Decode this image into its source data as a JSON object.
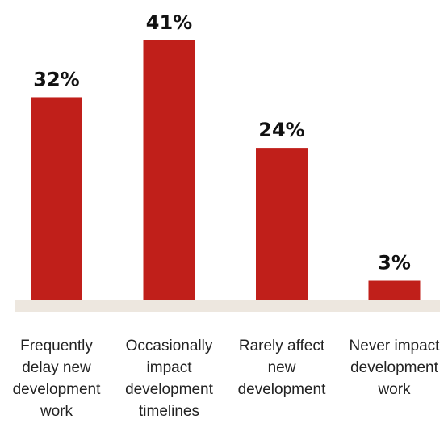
{
  "chart_data": {
    "type": "bar",
    "title": "",
    "xlabel": "",
    "ylabel": "",
    "categories": [
      [
        "Frequently",
        "delay new",
        "development",
        "work"
      ],
      [
        "Occasionally",
        "impact",
        "development",
        "timelines"
      ],
      [
        "Rarely affect",
        "new",
        "development"
      ],
      [
        "Never impact",
        "development",
        "work"
      ]
    ],
    "values": [
      32,
      41,
      24,
      3
    ],
    "value_labels": [
      "32%",
      "41%",
      "24%",
      "3%"
    ],
    "ylim": [
      0,
      41
    ],
    "grid": false,
    "legend": "none",
    "colors": {
      "bar": "#c01f1a",
      "baseline": "#ede7df",
      "text": "#111111"
    }
  }
}
